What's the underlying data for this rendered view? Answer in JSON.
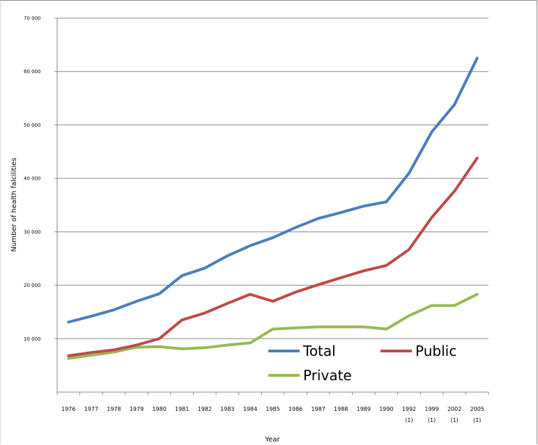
{
  "chart_data": {
    "type": "line",
    "title": "",
    "xlabel": "Year",
    "ylabel": "Number of health falcilities",
    "ylim": [
      0,
      70000
    ],
    "y_ticks": [
      10000,
      20000,
      30000,
      40000,
      50000,
      60000,
      70000
    ],
    "y_tick_labels": [
      "10 000",
      "20 000",
      "30 000",
      "40 000",
      "50 000",
      "60 000",
      "70 000"
    ],
    "grid": "horizontal",
    "legend_position": "bottom-right",
    "categories": [
      {
        "year": "1976",
        "note": ""
      },
      {
        "year": "1977",
        "note": ""
      },
      {
        "year": "1978",
        "note": ""
      },
      {
        "year": "1979",
        "note": ""
      },
      {
        "year": "1980",
        "note": ""
      },
      {
        "year": "1981",
        "note": ""
      },
      {
        "year": "1982",
        "note": ""
      },
      {
        "year": "1983",
        "note": ""
      },
      {
        "year": "1984",
        "note": ""
      },
      {
        "year": "1985",
        "note": ""
      },
      {
        "year": "1986",
        "note": ""
      },
      {
        "year": "1987",
        "note": ""
      },
      {
        "year": "1988",
        "note": ""
      },
      {
        "year": "1989",
        "note": ""
      },
      {
        "year": "1990",
        "note": ""
      },
      {
        "year": "1992",
        "note": "(1)"
      },
      {
        "year": "1999",
        "note": "(1)"
      },
      {
        "year": "2002",
        "note": "(1)"
      },
      {
        "year": "2005",
        "note": "(1)"
      }
    ],
    "series": [
      {
        "name": "Total",
        "color": "#4a7ebb",
        "values": [
          13100,
          14200,
          15400,
          17000,
          18400,
          21800,
          23200,
          25500,
          27400,
          28900,
          30800,
          32500,
          33600,
          34800,
          35600,
          41000,
          48700,
          53800,
          62500
        ]
      },
      {
        "name": "Public",
        "color": "#be4b48",
        "values": [
          6800,
          7400,
          7900,
          8800,
          10000,
          13500,
          14800,
          16600,
          18300,
          17000,
          18700,
          20100,
          21400,
          22700,
          23700,
          26700,
          32700,
          37600,
          43800
        ]
      },
      {
        "name": "Private",
        "color": "#98b954",
        "values": [
          6300,
          6900,
          7500,
          8400,
          8500,
          8100,
          8300,
          8800,
          9200,
          11800,
          12000,
          12200,
          12200,
          12200,
          11800,
          14300,
          16200,
          16200,
          18300
        ]
      }
    ]
  }
}
